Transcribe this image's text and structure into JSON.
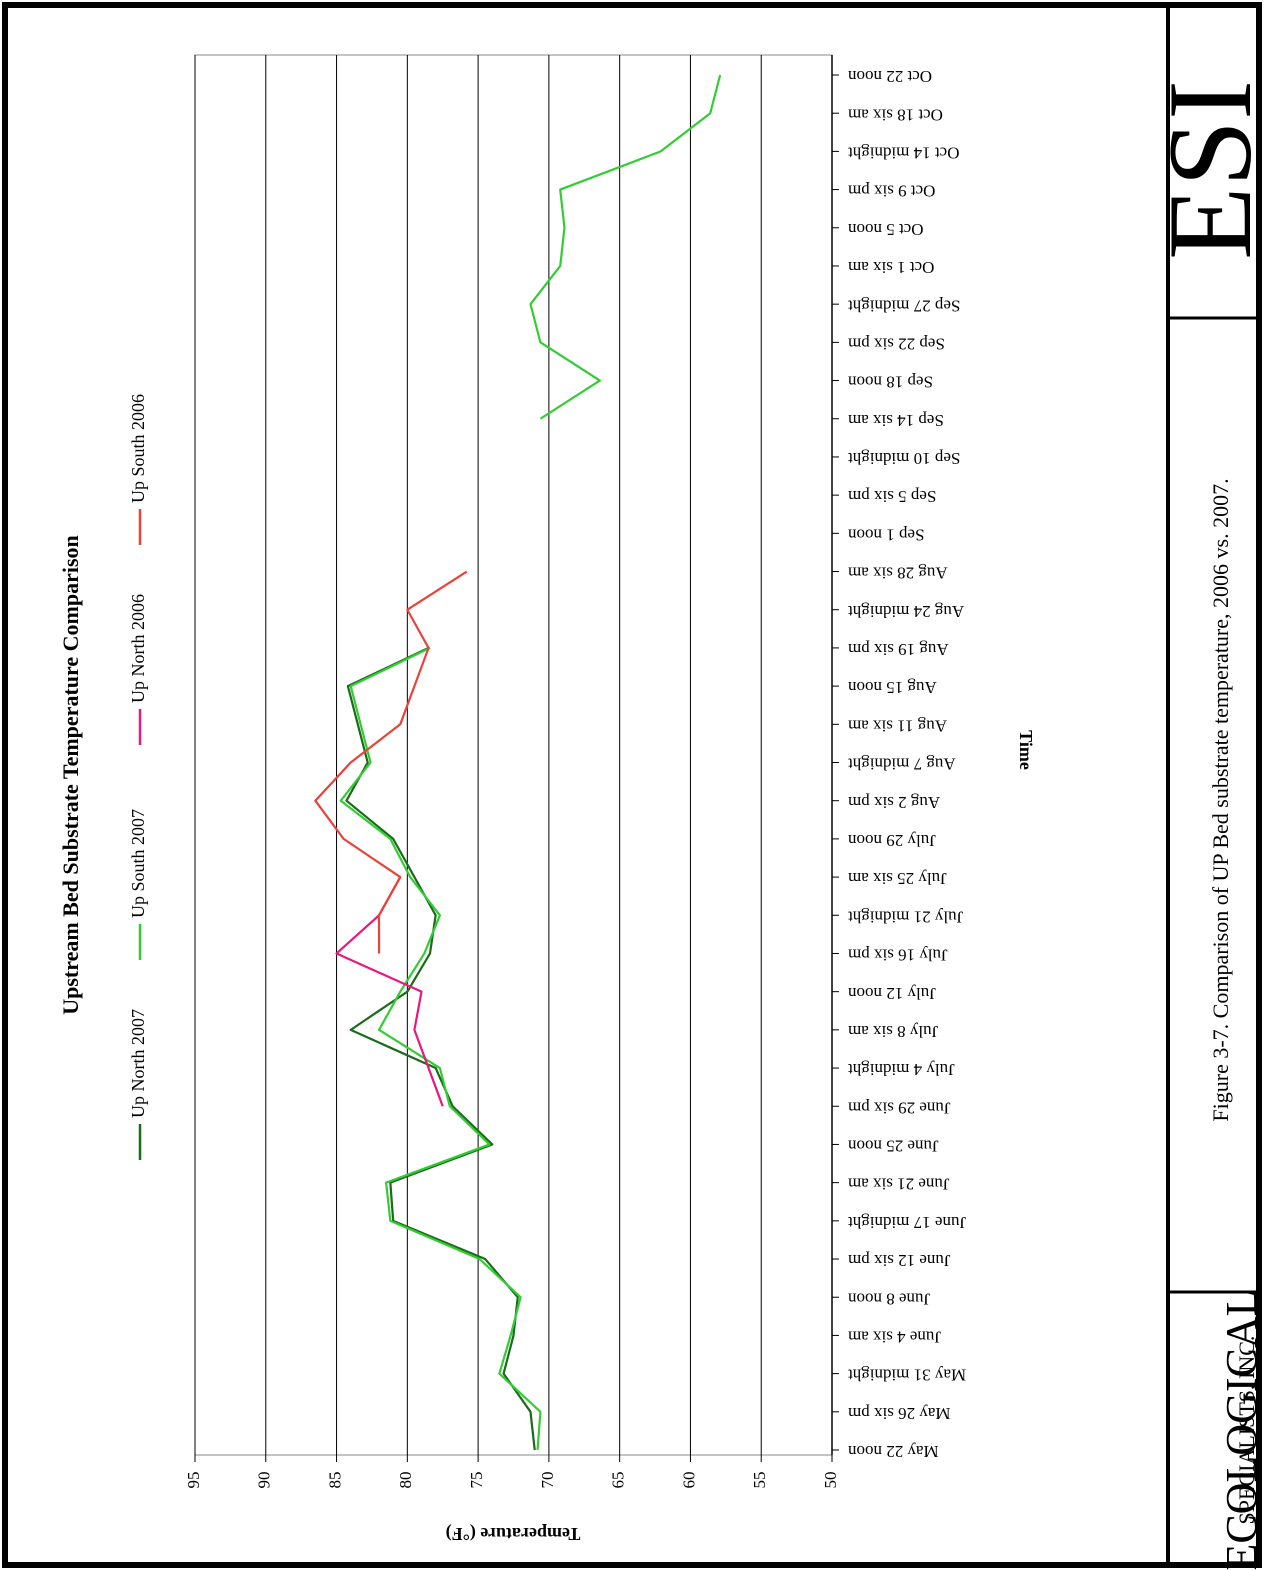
{
  "chart_data": {
    "type": "line",
    "title": "Upstream Bed Substrate Temperature Comparison",
    "x_label": "Time",
    "y_label": "Temperature (°F)",
    "categories": [
      "May 22 noon",
      "May 26 six pm",
      "May 31 midnight",
      "June 4 six am",
      "June 8 noon",
      "June 12 six pm",
      "June 17 midnight",
      "June 21 six am",
      "June 25 noon",
      "June 29 six pm",
      "July 4 midnight",
      "July 8 six am",
      "July 12 noon",
      "July 16 six pm",
      "July 21 midnight",
      "July 25 six am",
      "July 29 noon",
      "Aug 2 six pm",
      "Aug 7 midnight",
      "Aug 11 six am",
      "Aug 15 noon",
      "Aug 19 six pm",
      "Aug 24 midnight",
      "Aug 28 six am",
      "Sep 1 noon",
      "Sep 5 six pm",
      "Sep 10 midnight",
      "Sep 14 six am",
      "Sep 18 noon",
      "Sep 22 six pm",
      "Sep 27 midnight",
      "Oct 1 six am",
      "Oct 5 noon",
      "Oct 9 six pm",
      "Oct 14 midnight",
      "Oct 18 six am",
      "Oct 22 noon"
    ],
    "series": [
      {
        "name": "Up North 2007",
        "color": "#1a6b1a",
        "values": [
          71,
          71.3,
          73.2,
          72.5,
          72.2,
          74.5,
          81,
          81.2,
          74,
          76.8,
          78,
          84,
          80,
          78.4,
          78,
          79.5,
          81,
          84.3,
          82.8,
          83.5,
          84.2,
          78.5,
          null,
          null,
          null,
          null,
          null,
          null,
          null,
          null,
          null,
          null,
          null,
          null,
          null,
          null,
          null
        ]
      },
      {
        "name": "Up South 2007",
        "color": "#33cc33",
        "values": [
          70.8,
          70.6,
          73.5,
          72.7,
          72,
          74.9,
          81.2,
          81.5,
          74.2,
          77,
          77.7,
          82,
          80.5,
          78.8,
          77.7,
          79.8,
          81.2,
          84.7,
          82.6,
          83.3,
          84,
          78.4,
          null,
          null,
          null,
          null,
          null,
          70.6,
          66.4,
          70.6,
          71.3,
          69.2,
          68.9,
          69.2,
          62.1,
          58.6,
          57.9
        ]
      },
      {
        "name": "Up North 2006",
        "color": "#e6197f",
        "values": [
          null,
          null,
          null,
          null,
          null,
          null,
          null,
          null,
          null,
          77.5,
          78.5,
          79.5,
          79,
          85,
          82,
          80.5,
          null,
          null,
          null,
          null,
          null,
          null,
          null,
          null,
          null,
          null,
          null,
          null,
          null,
          null,
          null,
          null,
          null,
          null,
          null,
          null,
          null
        ]
      },
      {
        "name": "Up South 2006",
        "color": "#e8433a",
        "values": [
          null,
          null,
          null,
          null,
          null,
          null,
          null,
          null,
          null,
          null,
          null,
          null,
          null,
          82,
          82,
          80.5,
          84.5,
          86.5,
          84,
          80.5,
          79.5,
          78.5,
          80,
          75.8,
          null,
          null,
          null,
          null,
          null,
          null,
          null,
          null,
          null,
          null,
          null,
          null,
          null
        ]
      }
    ],
    "ylim": [
      50,
      95
    ],
    "yticks": [
      50,
      55,
      60,
      65,
      70,
      75,
      80,
      85,
      90,
      95
    ],
    "grid": true
  },
  "caption": "Figure 3-7.  Comparison of UP Bed substrate temperature, 2006 vs. 2007.",
  "logo": {
    "short": "ESI",
    "line1": "ECOLOGICAL",
    "line2": "SPECIALISTS, INC."
  }
}
